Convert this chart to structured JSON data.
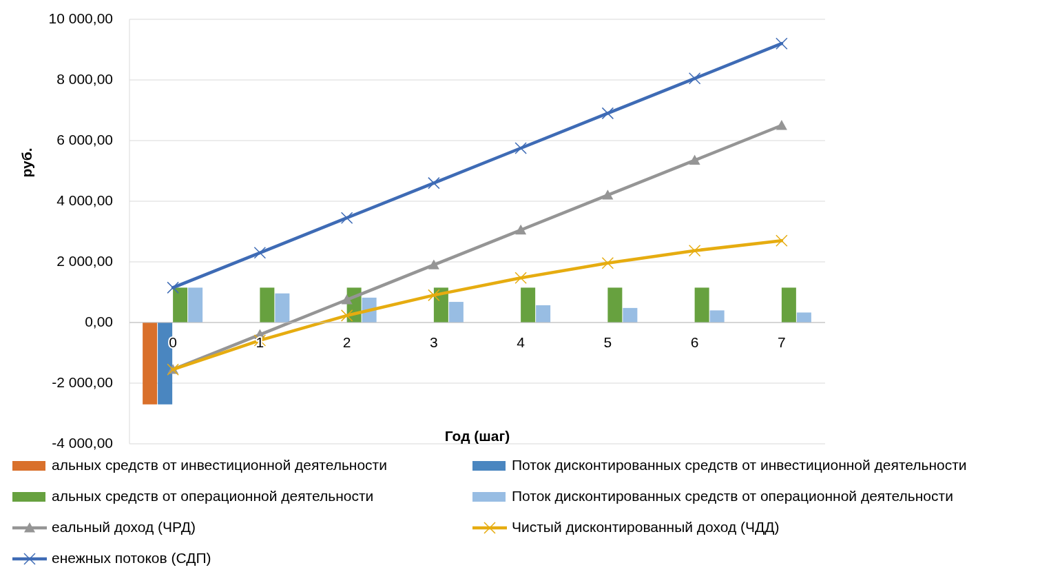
{
  "chart_data": {
    "type": "bar",
    "xlabel": "Год (шаг)",
    "ylabel": "руб.",
    "categories": [
      "0",
      "1",
      "2",
      "3",
      "4",
      "5",
      "6",
      "7"
    ],
    "series": [
      {
        "name": "альных средств от инвестиционной деятельности",
        "color": "#d9702b",
        "values": [
          -2700,
          null,
          null,
          null,
          null,
          null,
          null,
          null
        ]
      },
      {
        "name": "Поток дисконтированных средств от инвестиционной деятельности",
        "color": "#4a86c0",
        "values": [
          -2700,
          null,
          null,
          null,
          null,
          null,
          null,
          null
        ]
      },
      {
        "name": "альных средств от операционной деятельности",
        "color": "#67a13f",
        "values": [
          1150,
          1150,
          1150,
          1150,
          1150,
          1150,
          1150,
          1150
        ]
      },
      {
        "name": "Поток дисконтированных средств от операционной деятельности",
        "color": "#98bde3",
        "values": [
          1150,
          960,
          820,
          680,
          570,
          480,
          400,
          330
        ]
      },
      {
        "name": "еальный доход (ЧРД)",
        "type": "line",
        "color": "#959595",
        "marker": "triangle",
        "values": [
          -1550,
          -400,
          750,
          1900,
          3050,
          4200,
          5350,
          6500
        ]
      },
      {
        "name": "Чистый дисконтированный доход (ЧДД)",
        "type": "line",
        "color": "#e6ac10",
        "marker": "cross",
        "values": [
          -1550,
          -590,
          230,
          900,
          1470,
          1960,
          2370,
          2700
        ]
      },
      {
        "name": "енежных потоков (СДП)",
        "type": "line",
        "color": "#3e6bb5",
        "marker": "cross",
        "values": [
          1150,
          2300,
          3450,
          4600,
          5750,
          6900,
          8050,
          9200
        ]
      }
    ],
    "ylim": [
      -4000,
      10000
    ],
    "yticks": [
      {
        "value": -4000,
        "label": "-4 000,00"
      },
      {
        "value": -2000,
        "label": "-2 000,00"
      },
      {
        "value": 0,
        "label": "0,00"
      },
      {
        "value": 2000,
        "label": "2 000,00"
      },
      {
        "value": 4000,
        "label": "4 000,00"
      },
      {
        "value": 6000,
        "label": "6 000,00"
      },
      {
        "value": 8000,
        "label": "8 000,00"
      },
      {
        "value": 10000,
        "label": "10 000,00"
      }
    ],
    "grid": "y",
    "legend": "bottom",
    "line_style": "solid"
  }
}
